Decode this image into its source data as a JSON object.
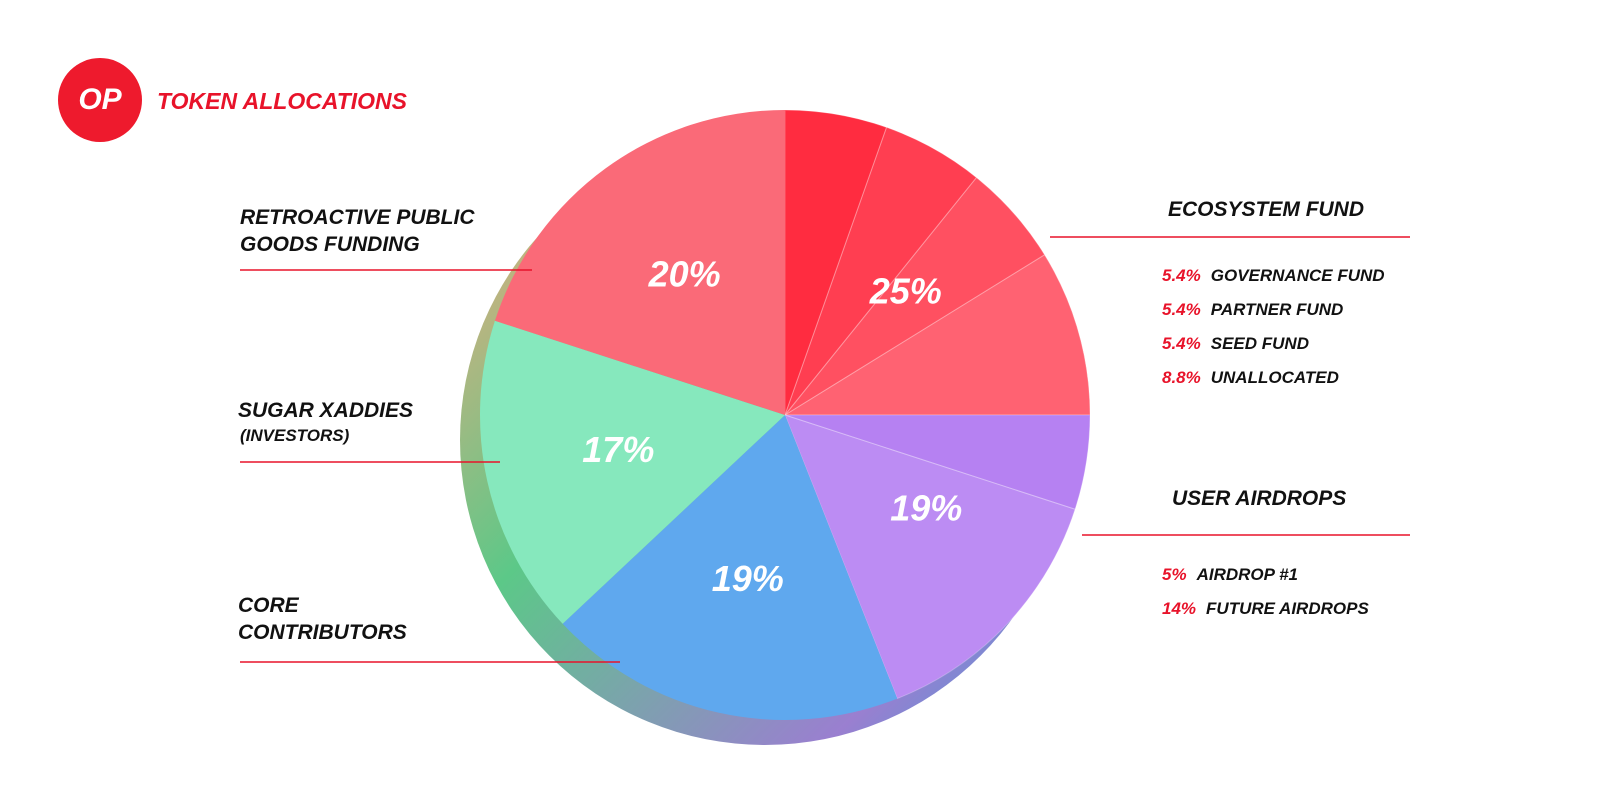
{
  "logo": "OP",
  "chart_data": {
    "type": "pie",
    "title": "TOKEN ALLOCATIONS",
    "categories": [
      "ECOSYSTEM FUND",
      "USER AIRDROPS",
      "CORE CONTRIBUTORS",
      "SUGAR XADDIES",
      "RETROACTIVE PUBLIC GOODS FUNDING"
    ],
    "values": [
      25,
      19,
      19,
      17,
      20
    ],
    "value_labels": [
      "25%",
      "19%",
      "19%",
      "17%",
      "20%"
    ],
    "colors": [
      "#ff1f35",
      "#b27af2",
      "#5fa8ee",
      "#86e8bd",
      "#fa6a78"
    ],
    "investors_note": "(INVESTORS)",
    "ecosystem_fund_breakdown": {
      "names": [
        "GOVERNANCE FUND",
        "PARTNER FUND",
        "SEED FUND",
        "UNALLOCATED"
      ],
      "values": [
        5.4,
        5.4,
        5.4,
        8.8
      ],
      "value_labels": [
        "5.4%",
        "5.4%",
        "5.4%",
        "8.8%"
      ]
    },
    "user_airdrops_breakdown": {
      "names": [
        "AIRDROP #1",
        "FUTURE AIRDROPS"
      ],
      "values": [
        5,
        14
      ],
      "value_labels": [
        "5%",
        "14%"
      ]
    }
  }
}
